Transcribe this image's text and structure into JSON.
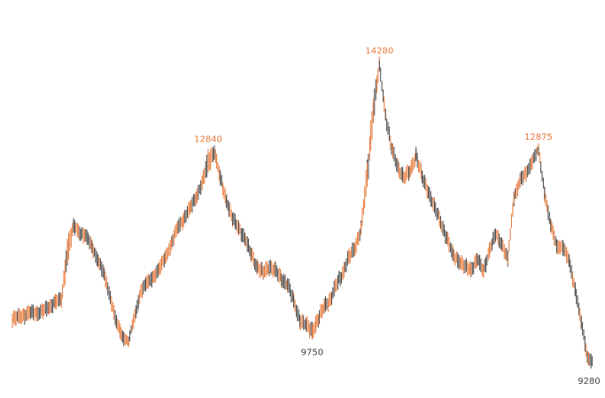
{
  "colors": {
    "up": "#e8783a",
    "down": "#4a4a4a",
    "low_label": "#444444",
    "high_label": "#e8783a",
    "background": "#ffffff"
  },
  "chart_data": {
    "type": "line",
    "style": "price-bars",
    "title": "",
    "xlabel": "",
    "ylabel": "",
    "axes_visible": false,
    "grid": false,
    "ylim": [
      9150,
      14400
    ],
    "series": [
      {
        "values": [
          10060,
          10110,
          10140,
          10180,
          10170,
          10210,
          10260,
          10360,
          10380,
          11180,
          11580,
          11480,
          11430,
          11250,
          11030,
          10800,
          10430,
          10020,
          9790,
          9720,
          10120,
          10530,
          10660,
          10760,
          10890,
          11080,
          11300,
          11560,
          11700,
          11870,
          12050,
          12280,
          12620,
          12800,
          12360,
          12000,
          11700,
          11560,
          11380,
          11140,
          10920,
          10830,
          10930,
          10860,
          10720,
          10640,
          10360,
          10050,
          9980,
          9880,
          10060,
          10290,
          10390,
          10640,
          10820,
          11080,
          11230,
          11540,
          12420,
          13460,
          14200,
          13400,
          12840,
          12550,
          12380,
          12470,
          12740,
          12380,
          12140,
          11900,
          11650,
          11400,
          11120,
          11020,
          10920,
          10880,
          11050,
          10850,
          11200,
          11450,
          11300,
          11050,
          12050,
          12330,
          12440,
          12650,
          12830,
          12130,
          11600,
          11260,
          11250,
          11020,
          10570,
          10020,
          9460,
          9370
        ],
        "highs": [
          10160,
          10210,
          10240,
          10280,
          10270,
          10310,
          10360,
          10460,
          10480,
          11380,
          11680,
          11580,
          11530,
          11350,
          11130,
          10900,
          10530,
          10120,
          9890,
          9750,
          10220,
          10630,
          10760,
          10860,
          10990,
          11180,
          11400,
          11660,
          11800,
          11970,
          12150,
          12380,
          12840,
          12900,
          12460,
          12100,
          11800,
          11660,
          11480,
          11240,
          11020,
          10930,
          11030,
          10960,
          10820,
          10740,
          10460,
          10150,
          10080,
          9980,
          10160,
          10390,
          10490,
          10740,
          10920,
          11180,
          11330,
          11640,
          12620,
          13660,
          14280,
          13500,
          12940,
          12650,
          12480,
          12570,
          12840,
          12480,
          12240,
          12000,
          11750,
          11500,
          11220,
          11120,
          11020,
          10980,
          11150,
          10950,
          11300,
          11550,
          11400,
          11150,
          12150,
          12430,
          12540,
          12750,
          12875,
          12230,
          11700,
          11360,
          11350,
          11120,
          10670,
          10120,
          9560,
          9470
        ],
        "lows": [
          9960,
          10010,
          10040,
          10080,
          10070,
          10110,
          10160,
          10260,
          10280,
          10980,
          11480,
          11380,
          11330,
          11150,
          10930,
          10700,
          10330,
          9920,
          9690,
          9620,
          10020,
          10430,
          10560,
          10660,
          10790,
          10980,
          11200,
          11460,
          11600,
          11770,
          11950,
          12180,
          12520,
          12700,
          12260,
          11900,
          11600,
          11460,
          11280,
          11040,
          10820,
          10730,
          10830,
          10760,
          10620,
          10540,
          10260,
          9950,
          9880,
          9750,
          9960,
          10190,
          10290,
          10540,
          10720,
          10980,
          11130,
          11440,
          12220,
          13260,
          14100,
          13300,
          12740,
          12450,
          12280,
          12370,
          12640,
          12280,
          12040,
          11800,
          11550,
          11300,
          11020,
          10920,
          10820,
          10780,
          10950,
          10750,
          11100,
          11350,
          11200,
          10950,
          11950,
          12230,
          12340,
          12550,
          12730,
          12030,
          11500,
          11160,
          11150,
          10920,
          10470,
          9920,
          9360,
          9280
        ]
      }
    ],
    "annotations": [
      {
        "text": "12840",
        "kind": "high"
      },
      {
        "text": "14280",
        "kind": "high"
      },
      {
        "text": "12875",
        "kind": "high"
      },
      {
        "text": "9750",
        "kind": "low"
      },
      {
        "text": "9280",
        "kind": "low"
      }
    ]
  }
}
